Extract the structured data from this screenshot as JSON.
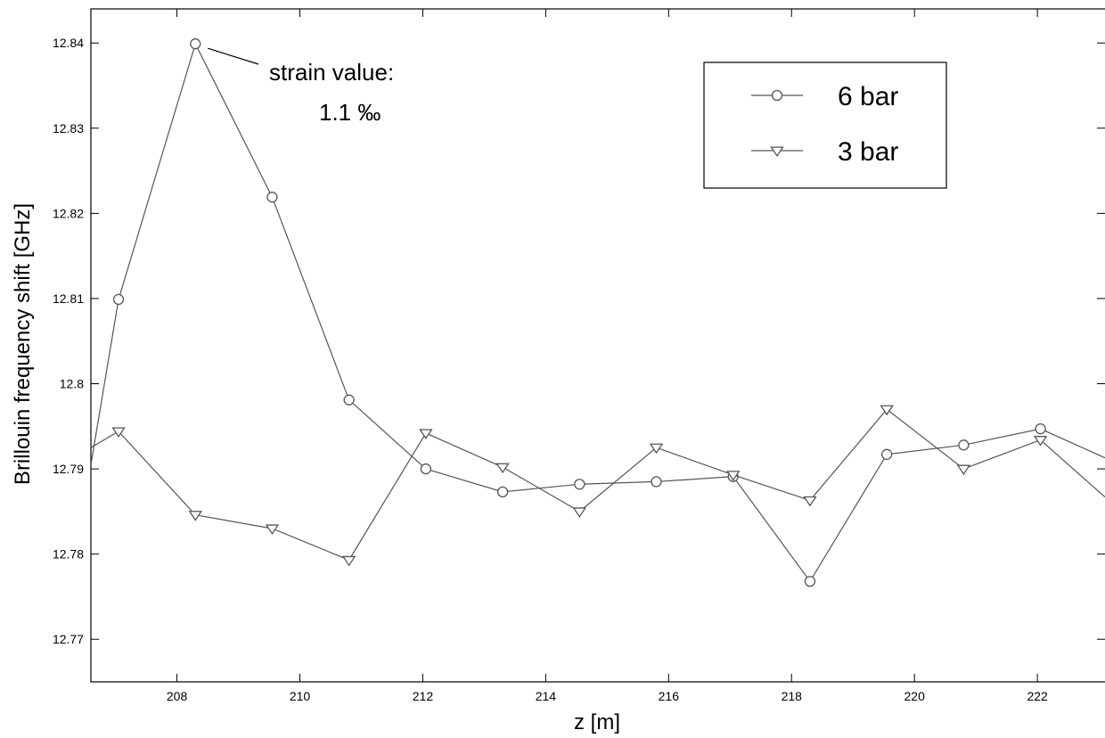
{
  "chart_data": {
    "type": "line",
    "title": "",
    "xlabel": "z [m]",
    "ylabel": "Brillouin frequency shift [GHz]",
    "xlim": [
      206.6,
      223.1
    ],
    "ylim": [
      12.765,
      12.844
    ],
    "x_ticks": [
      208,
      210,
      212,
      214,
      216,
      218,
      220,
      222
    ],
    "y_ticks": [
      12.77,
      12.78,
      12.79,
      12.8,
      12.81,
      12.82,
      12.83,
      12.84
    ],
    "x_tick_labels": [
      "208",
      "210",
      "212",
      "214",
      "216",
      "218",
      "220",
      "222"
    ],
    "y_tick_labels": [
      "12.77",
      "12.78",
      "12.79",
      "12.8",
      "12.81",
      "12.82",
      "12.83",
      "12.84"
    ],
    "grid": false,
    "legend_position": "top-right",
    "series": [
      {
        "name": "6 bar",
        "marker": "circle",
        "color": "#555555",
        "x": [
          206.6,
          207.05,
          208.3,
          209.55,
          210.8,
          212.05,
          213.3,
          214.55,
          215.8,
          217.05,
          218.3,
          219.55,
          220.8,
          222.05,
          223.1
        ],
        "y": [
          12.7905,
          12.8099,
          12.8399,
          12.8219,
          12.7981,
          12.79,
          12.7873,
          12.7882,
          12.7885,
          12.7891,
          12.7768,
          12.7917,
          12.7928,
          12.7947,
          12.7913
        ]
      },
      {
        "name": "3 bar",
        "marker": "triangle-down",
        "color": "#555555",
        "x": [
          206.6,
          207.05,
          208.3,
          209.55,
          210.8,
          212.05,
          213.3,
          214.55,
          215.8,
          217.05,
          218.3,
          219.55,
          220.8,
          222.05,
          223.1
        ],
        "y": [
          12.7925,
          12.7944,
          12.7846,
          12.783,
          12.7793,
          12.7942,
          12.7902,
          12.785,
          12.7925,
          12.7893,
          12.7863,
          12.797,
          12.79,
          12.7934,
          12.7867
        ]
      }
    ],
    "annotations": [
      {
        "text_line1": "strain value:",
        "text_line2": "1.1 ‰",
        "x": 208.3,
        "y": 12.8399
      }
    ]
  }
}
